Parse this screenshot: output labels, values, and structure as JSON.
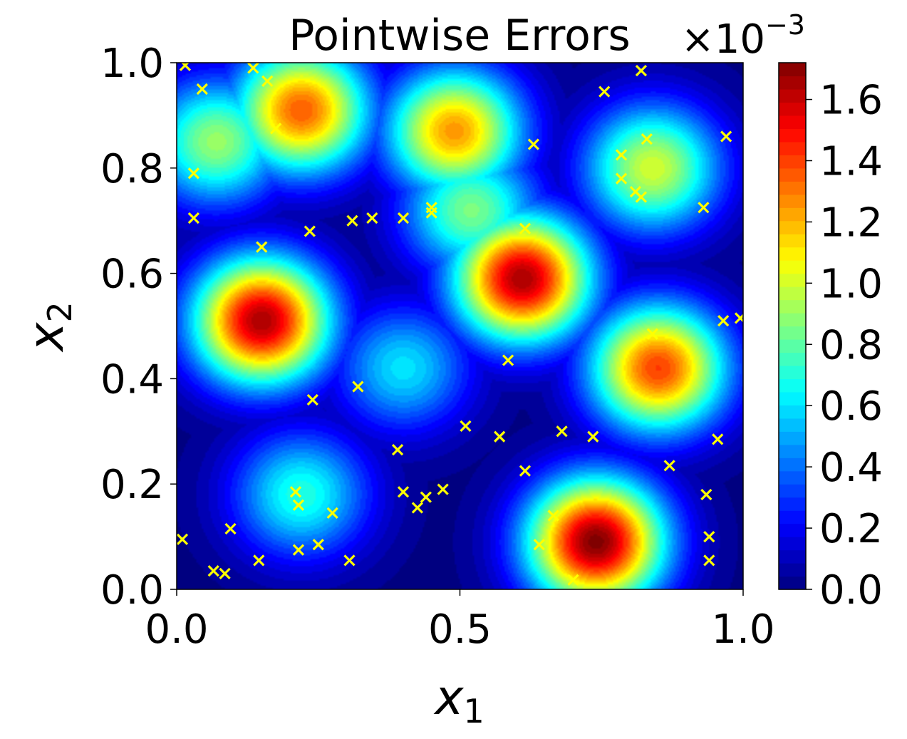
{
  "chart_data": {
    "type": "heatmap",
    "title": "Pointwise Errors",
    "xlabel": "x",
    "xlabel_sub": "1",
    "ylabel": "x",
    "ylabel_sub": "2",
    "xlim": [
      0.0,
      1.0
    ],
    "ylim": [
      0.0,
      1.0
    ],
    "x_ticks": [
      0.0,
      0.5,
      1.0
    ],
    "x_tick_labels": [
      "0.0",
      "0.5",
      "1.0"
    ],
    "y_ticks": [
      0.0,
      0.2,
      0.4,
      0.6,
      0.8,
      1.0
    ],
    "y_tick_labels": [
      "0.0",
      "0.2",
      "0.4",
      "0.6",
      "0.8",
      "1.0"
    ],
    "colormap": "jet",
    "colorbar": {
      "min": 0.0,
      "max": 1.72,
      "ticks": [
        0.0,
        0.2,
        0.4,
        0.6,
        0.8,
        1.0,
        1.2,
        1.4,
        1.6
      ],
      "tick_labels": [
        "0.0",
        "0.2",
        "0.4",
        "0.6",
        "0.8",
        "1.0",
        "1.2",
        "1.4",
        "1.6"
      ],
      "offset_base": "×10",
      "offset_exponent": "−3"
    },
    "error_peaks": [
      {
        "x": 0.15,
        "y": 0.51,
        "value": 1.65
      },
      {
        "x": 0.61,
        "y": 0.59,
        "value": 1.65
      },
      {
        "x": 0.74,
        "y": 0.09,
        "value": 1.72
      },
      {
        "x": 0.85,
        "y": 0.42,
        "value": 1.4
      },
      {
        "x": 0.22,
        "y": 0.91,
        "value": 1.35
      },
      {
        "x": 0.49,
        "y": 0.87,
        "value": 1.25
      },
      {
        "x": 0.84,
        "y": 0.8,
        "value": 1.0
      },
      {
        "x": 0.52,
        "y": 0.72,
        "value": 0.85
      },
      {
        "x": 0.22,
        "y": 0.18,
        "value": 0.7
      },
      {
        "x": 0.4,
        "y": 0.42,
        "value": 0.6
      },
      {
        "x": 0.07,
        "y": 0.85,
        "value": 0.9
      }
    ],
    "points_marker": "x",
    "points_color": "#ffff00",
    "points": [
      [
        0.015,
        0.995
      ],
      [
        0.135,
        0.99
      ],
      [
        0.82,
        0.985
      ],
      [
        0.045,
        0.95
      ],
      [
        0.16,
        0.965
      ],
      [
        0.755,
        0.945
      ],
      [
        0.175,
        0.875
      ],
      [
        0.97,
        0.86
      ],
      [
        0.83,
        0.855
      ],
      [
        0.63,
        0.845
      ],
      [
        0.785,
        0.825
      ],
      [
        0.03,
        0.79
      ],
      [
        0.785,
        0.78
      ],
      [
        0.81,
        0.755
      ],
      [
        0.82,
        0.745
      ],
      [
        0.93,
        0.725
      ],
      [
        0.45,
        0.725
      ],
      [
        0.45,
        0.715
      ],
      [
        0.03,
        0.705
      ],
      [
        0.345,
        0.705
      ],
      [
        0.4,
        0.705
      ],
      [
        0.31,
        0.7
      ],
      [
        0.615,
        0.685
      ],
      [
        0.235,
        0.68
      ],
      [
        0.15,
        0.65
      ],
      [
        0.965,
        0.51
      ],
      [
        0.995,
        0.515
      ],
      [
        0.84,
        0.485
      ],
      [
        0.585,
        0.435
      ],
      [
        0.32,
        0.385
      ],
      [
        0.24,
        0.36
      ],
      [
        0.51,
        0.31
      ],
      [
        0.68,
        0.3
      ],
      [
        0.57,
        0.29
      ],
      [
        0.735,
        0.29
      ],
      [
        0.955,
        0.285
      ],
      [
        0.39,
        0.265
      ],
      [
        0.87,
        0.235
      ],
      [
        0.615,
        0.225
      ],
      [
        0.47,
        0.19
      ],
      [
        0.4,
        0.185
      ],
      [
        0.21,
        0.185
      ],
      [
        0.44,
        0.175
      ],
      [
        0.935,
        0.18
      ],
      [
        0.215,
        0.16
      ],
      [
        0.425,
        0.155
      ],
      [
        0.275,
        0.145
      ],
      [
        0.665,
        0.14
      ],
      [
        0.095,
        0.115
      ],
      [
        0.94,
        0.1
      ],
      [
        0.01,
        0.095
      ],
      [
        0.25,
        0.085
      ],
      [
        0.64,
        0.085
      ],
      [
        0.215,
        0.075
      ],
      [
        0.145,
        0.055
      ],
      [
        0.305,
        0.055
      ],
      [
        0.94,
        0.055
      ],
      [
        0.065,
        0.035
      ],
      [
        0.085,
        0.03
      ],
      [
        0.7,
        0.018
      ]
    ]
  }
}
